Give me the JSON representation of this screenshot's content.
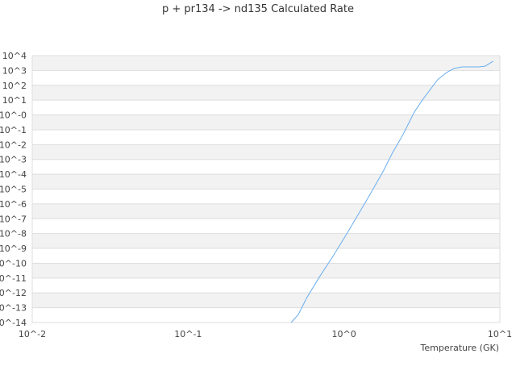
{
  "chart_data": {
    "type": "line",
    "title": "p + pr134 -> nd135 Calculated Rate",
    "xlabel": "Temperature (GK)",
    "ylabel": "",
    "x_scale": "log",
    "y_scale": "log",
    "xlim": [
      0.01,
      10
    ],
    "ylim": [
      1e-14,
      10000.0
    ],
    "grid": "horizontal, alternating bands",
    "x_tick_labels": [
      "10^-2",
      "10^-1",
      "10^0",
      "10^1"
    ],
    "y_tick_labels": [
      "10^4",
      "10^3",
      "10^2",
      "10^1",
      "10^-0",
      "10^-1",
      "10^-2",
      "10^-3",
      "10^-4",
      "10^-5",
      "10^-6",
      "10^-7",
      "10^-8",
      "10^-9",
      "10^-10",
      "10^-11",
      "10^-12",
      "10^-13",
      "10^-14"
    ],
    "series": [
      {
        "color": "#6aaef0",
        "x": [
          0.458,
          0.51,
          0.574,
          0.7,
          0.85,
          1.04,
          1.27,
          1.43,
          1.79,
          2.04,
          2.39,
          2.82,
          3.18,
          3.98,
          4.54,
          5.06,
          5.69,
          7.31,
          8.04,
          9.06
        ],
        "y": [
          1e-14,
          3.5e-14,
          4.3e-13,
          1.3e-11,
          2.9e-10,
          9.5e-09,
          3.2e-07,
          2.7e-06,
          0.00017,
          0.0026,
          0.047,
          1.5,
          10,
          230,
          720,
          1350,
          1740,
          1740,
          1950,
          4200
        ]
      }
    ]
  }
}
